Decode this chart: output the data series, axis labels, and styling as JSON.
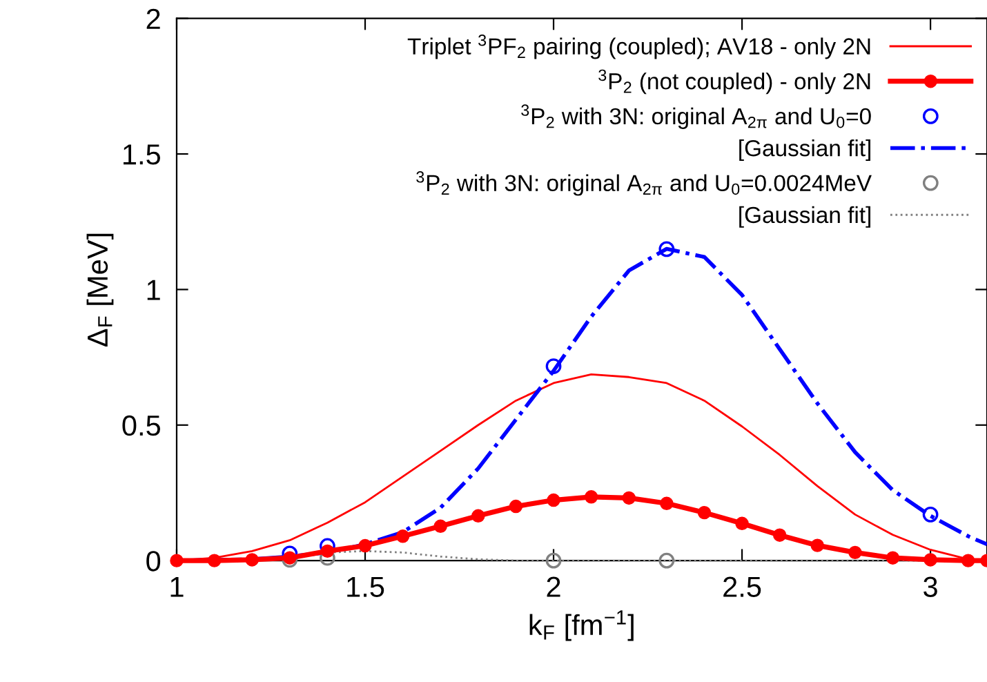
{
  "chart_data": {
    "type": "line",
    "xlabel": "k$_{F}$ [fm$^{−1}$]",
    "ylabel": "Δ$_{F}$ [MeV]",
    "xlim": [
      1,
      3.15
    ],
    "ylim": [
      0,
      2
    ],
    "xticks": [
      1,
      1.5,
      2,
      2.5,
      3
    ],
    "yticks": [
      0,
      0.5,
      1,
      1.5,
      2
    ],
    "grid": false,
    "legend": "top right",
    "series": [
      {
        "name": "Triplet $^{3}$PF$_{2}$ pairing (coupled); AV18 - only 2N",
        "marker": "none",
        "line_style": "solid",
        "color": "#ff0000",
        "x": [
          1.0,
          1.1,
          1.2,
          1.3,
          1.4,
          1.5,
          1.6,
          1.7,
          1.8,
          1.9,
          2.0,
          2.1,
          2.2,
          2.3,
          2.4,
          2.5,
          2.6,
          2.7,
          2.8,
          2.9,
          3.0,
          3.1,
          3.15
        ],
        "values": [
          0,
          0.01,
          0.035,
          0.075,
          0.14,
          0.215,
          0.31,
          0.405,
          0.5,
          0.59,
          0.655,
          0.687,
          0.677,
          0.655,
          0.59,
          0.495,
          0.39,
          0.275,
          0.17,
          0.095,
          0.04,
          0.005,
          0
        ]
      },
      {
        "name": "$^{3}$P$_{2}$ (not coupled) - only 2N",
        "marker": "circle",
        "line_style": "solid",
        "color": "#ff0000",
        "x": [
          1.0,
          1.1,
          1.2,
          1.3,
          1.4,
          1.5,
          1.6,
          1.7,
          1.8,
          1.9,
          2.0,
          2.1,
          2.2,
          2.3,
          2.4,
          2.5,
          2.6,
          2.7,
          2.8,
          2.9,
          3.0,
          3.1,
          3.15
        ],
        "values": [
          0,
          0,
          0.003,
          0.01,
          0.035,
          0.055,
          0.09,
          0.127,
          0.165,
          0.2,
          0.223,
          0.235,
          0.231,
          0.211,
          0.177,
          0.137,
          0.094,
          0.056,
          0.03,
          0.01,
          0.003,
          0,
          0
        ]
      },
      {
        "name": "$^{3}$P$_{2}$ with 3N: original A$_{2π}$ and U$_{0}$=0",
        "type": "scatter",
        "marker": "circle",
        "color": "#0000ff",
        "x": [
          1.3,
          1.4,
          2.0,
          2.3,
          3.0
        ],
        "values": [
          0.026,
          0.054,
          0.717,
          1.149,
          0.17
        ]
      },
      {
        "name": "[Gaussian fit]",
        "marker": "none",
        "line_style": "dashdot",
        "color": "#0000ff",
        "x": [
          1.0,
          1.2,
          1.3,
          1.4,
          1.5,
          1.6,
          1.7,
          1.8,
          1.9,
          2.0,
          2.1,
          2.2,
          2.3,
          2.4,
          2.5,
          2.6,
          2.7,
          2.8,
          2.9,
          3.0,
          3.1,
          3.15
        ],
        "values": [
          0,
          0.005,
          0.015,
          0.03,
          0.06,
          0.105,
          0.195,
          0.34,
          0.52,
          0.7,
          0.9,
          1.07,
          1.15,
          1.12,
          0.98,
          0.78,
          0.58,
          0.4,
          0.26,
          0.165,
          0.09,
          0.06
        ]
      },
      {
        "name": "$^{3}$P$_{2}$ with 3N: original A$_{2π}$ and U$_{0}$=0.0024MeV",
        "type": "scatter",
        "marker": "circle",
        "color": "#808080",
        "x": [
          1.3,
          1.4,
          2.0,
          2.3
        ],
        "values": [
          0.003,
          0.01,
          0,
          0
        ]
      },
      {
        "name": "[Gaussian fit]",
        "marker": "none",
        "line_style": "dotted",
        "color": "#808080",
        "x": [
          1.0,
          1.2,
          1.3,
          1.4,
          1.5,
          1.6,
          1.7,
          1.8,
          1.9,
          2.0,
          2.5,
          3.0,
          3.15
        ],
        "values": [
          0,
          0.005,
          0.015,
          0.03,
          0.035,
          0.03,
          0.015,
          0.005,
          0,
          0,
          0,
          0,
          0
        ]
      }
    ]
  }
}
